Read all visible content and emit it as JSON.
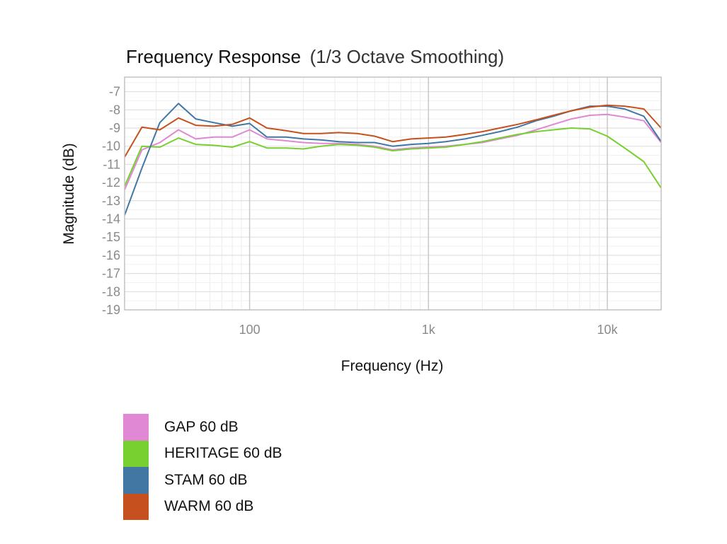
{
  "chart_data": {
    "type": "line",
    "title": "Frequency Response",
    "subtitle": "(1/3 Octave Smoothing)",
    "xlabel": "Frequency (Hz)",
    "ylabel": "Magnitude (dB)",
    "x_scale": "log",
    "xlim": [
      20,
      20000
    ],
    "ylim": [
      -19,
      -6.2
    ],
    "x_ticks": [
      {
        "value": 100,
        "label": "100"
      },
      {
        "value": 1000,
        "label": "1k"
      },
      {
        "value": 10000,
        "label": "10k"
      }
    ],
    "y_ticks": [
      {
        "value": -7,
        "label": "-7"
      },
      {
        "value": -8,
        "label": "-8"
      },
      {
        "value": -9,
        "label": "-9"
      },
      {
        "value": -10,
        "label": "-10"
      },
      {
        "value": -11,
        "label": "-11"
      },
      {
        "value": -12,
        "label": "-12"
      },
      {
        "value": -13,
        "label": "-13"
      },
      {
        "value": -14,
        "label": "-14"
      },
      {
        "value": -15,
        "label": "-15"
      },
      {
        "value": -16,
        "label": "-16"
      },
      {
        "value": -17,
        "label": "-17"
      },
      {
        "value": -18,
        "label": "-18"
      },
      {
        "value": -19,
        "label": "-19"
      }
    ],
    "grid": true,
    "legend_position": "bottom-left",
    "x": [
      20,
      25,
      31.5,
      40,
      50,
      63,
      80,
      100,
      125,
      160,
      200,
      250,
      315,
      400,
      500,
      630,
      800,
      1000,
      1250,
      1600,
      2000,
      2500,
      3150,
      4000,
      5000,
      6300,
      8000,
      10000,
      12500,
      16000,
      20000
    ],
    "series": [
      {
        "name": "GAP 60 dB",
        "color": "#e088d4",
        "values": [
          -12.4,
          -10.2,
          -9.8,
          -9.1,
          -9.6,
          -9.5,
          -9.5,
          -9.1,
          -9.6,
          -9.7,
          -9.8,
          -9.85,
          -9.85,
          -9.9,
          -10.0,
          -10.2,
          -10.1,
          -10.05,
          -10.0,
          -9.9,
          -9.8,
          -9.6,
          -9.4,
          -9.1,
          -8.8,
          -8.5,
          -8.3,
          -8.25,
          -8.4,
          -8.6,
          -9.8
        ]
      },
      {
        "name": "HERITAGE 60 dB",
        "color": "#77d02f",
        "values": [
          -12.2,
          -10.0,
          -10.05,
          -9.55,
          -9.9,
          -9.95,
          -10.05,
          -9.75,
          -10.1,
          -10.1,
          -10.15,
          -10.0,
          -9.9,
          -9.95,
          -10.05,
          -10.25,
          -10.15,
          -10.1,
          -10.05,
          -9.9,
          -9.75,
          -9.55,
          -9.35,
          -9.2,
          -9.1,
          -9.0,
          -9.05,
          -9.45,
          -10.1,
          -10.85,
          -12.3
        ]
      },
      {
        "name": "STAM 60 dB",
        "color": "#4277a4",
        "values": [
          -13.8,
          -11.2,
          -8.7,
          -7.65,
          -8.5,
          -8.7,
          -8.9,
          -8.75,
          -9.5,
          -9.5,
          -9.6,
          -9.65,
          -9.75,
          -9.8,
          -9.8,
          -10.0,
          -9.9,
          -9.85,
          -9.75,
          -9.6,
          -9.4,
          -9.2,
          -8.95,
          -8.6,
          -8.35,
          -8.05,
          -7.8,
          -7.8,
          -7.95,
          -8.35,
          -9.75
        ]
      },
      {
        "name": "WARM 60 dB",
        "color": "#c6501e",
        "values": [
          -10.6,
          -8.95,
          -9.1,
          -8.45,
          -8.85,
          -8.9,
          -8.8,
          -8.45,
          -9.0,
          -9.15,
          -9.3,
          -9.3,
          -9.25,
          -9.3,
          -9.45,
          -9.75,
          -9.6,
          -9.55,
          -9.5,
          -9.35,
          -9.2,
          -9.0,
          -8.8,
          -8.55,
          -8.3,
          -8.05,
          -7.85,
          -7.75,
          -7.8,
          -7.95,
          -9.0
        ]
      }
    ]
  }
}
